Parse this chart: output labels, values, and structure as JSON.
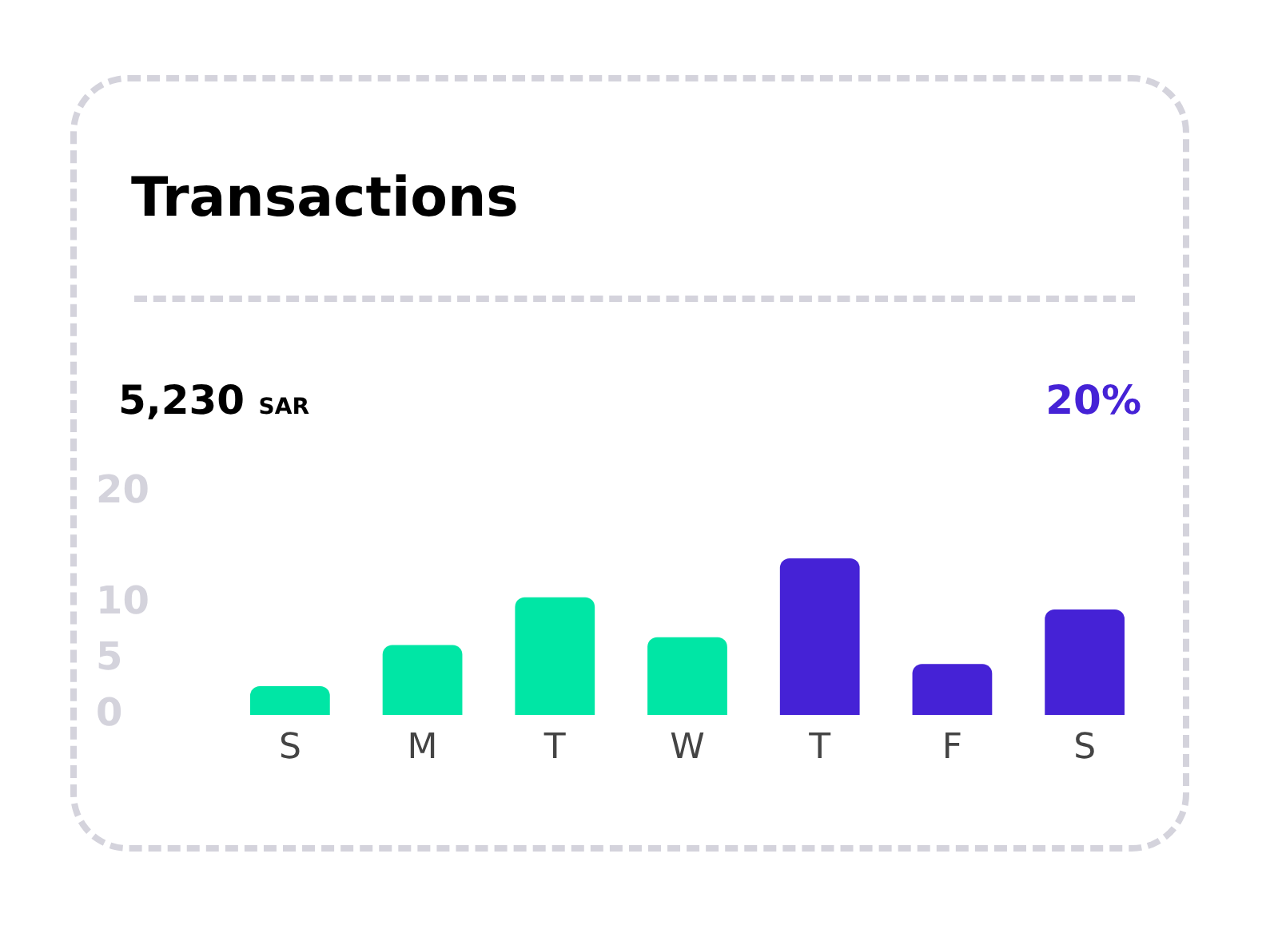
{
  "chart_data": {
    "type": "bar",
    "title": "Transactions",
    "annotations": [
      "5,230 SAR",
      "20%"
    ],
    "categories": [
      "S",
      "M",
      "T",
      "W",
      "T",
      "F",
      "S"
    ],
    "values": [
      2.6,
      6.3,
      10.6,
      7,
      14.1,
      4.6,
      9.5
    ],
    "colors": [
      "#00e6a5",
      "#00e6a5",
      "#00e6a5",
      "#00e6a5",
      "#4522d6",
      "#4522d6",
      "#4522d6"
    ],
    "ylim": [
      0,
      20
    ],
    "yticks": [
      0,
      5,
      10,
      20
    ],
    "grid": false,
    "legend": false
  }
}
